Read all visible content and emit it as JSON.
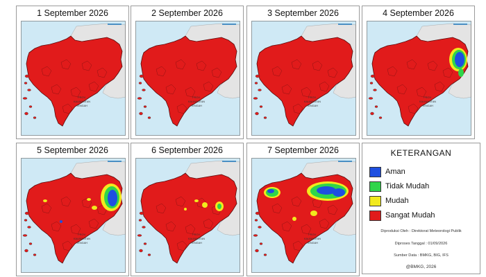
{
  "panels": [
    {
      "title": "1 September 2026",
      "patches": []
    },
    {
      "title": "2 September 2026",
      "patches": []
    },
    {
      "title": "3 September 2026",
      "patches": []
    },
    {
      "title": "4 September 2026",
      "patches": [
        {
          "color": "#f2ea1d",
          "cx": 132,
          "cy": 56,
          "rx": 13,
          "ry": 17
        },
        {
          "color": "#2fd54a",
          "cx": 133,
          "cy": 56,
          "rx": 10,
          "ry": 14
        },
        {
          "color": "#1e4fe0",
          "cx": 134,
          "cy": 56,
          "rx": 7,
          "ry": 11
        },
        {
          "color": "#2fd54a",
          "cx": 136,
          "cy": 75,
          "rx": 4,
          "ry": 6
        }
      ]
    },
    {
      "title": "5 September 2026",
      "patches": [
        {
          "color": "#f2ea1d",
          "cx": 130,
          "cy": 57,
          "rx": 15,
          "ry": 20
        },
        {
          "color": "#2fd54a",
          "cx": 131,
          "cy": 57,
          "rx": 11,
          "ry": 16
        },
        {
          "color": "#1e4fe0",
          "cx": 132,
          "cy": 58,
          "rx": 7,
          "ry": 12
        },
        {
          "color": "#f2ea1d",
          "cx": 106,
          "cy": 72,
          "rx": 4,
          "ry": 3
        },
        {
          "color": "#f2ea1d",
          "cx": 98,
          "cy": 60,
          "rx": 3,
          "ry": 2
        },
        {
          "color": "#f2ea1d",
          "cx": 35,
          "cy": 62,
          "rx": 3,
          "ry": 2
        },
        {
          "color": "#1e4fe0",
          "cx": 58,
          "cy": 92,
          "rx": 2,
          "ry": 2
        }
      ]
    },
    {
      "title": "6 September 2026",
      "patches": [
        {
          "color": "#f2ea1d",
          "cx": 121,
          "cy": 70,
          "rx": 6,
          "ry": 7
        },
        {
          "color": "#2fd54a",
          "cx": 121,
          "cy": 70,
          "rx": 3,
          "ry": 4
        },
        {
          "color": "#f2ea1d",
          "cx": 100,
          "cy": 68,
          "rx": 4,
          "ry": 4
        },
        {
          "color": "#f2ea1d",
          "cx": 88,
          "cy": 62,
          "rx": 3,
          "ry": 2
        },
        {
          "color": "#f2ea1d",
          "cx": 72,
          "cy": 74,
          "rx": 2,
          "ry": 2
        }
      ]
    },
    {
      "title": "7 September 2026",
      "patches": [
        {
          "color": "#f2ea1d",
          "cx": 110,
          "cy": 48,
          "rx": 30,
          "ry": 14
        },
        {
          "color": "#2fd54a",
          "cx": 111,
          "cy": 48,
          "rx": 26,
          "ry": 11
        },
        {
          "color": "#1e4fe0",
          "cx": 108,
          "cy": 47,
          "rx": 14,
          "ry": 6
        },
        {
          "color": "#1e4fe0",
          "cx": 126,
          "cy": 50,
          "rx": 9,
          "ry": 6
        },
        {
          "color": "#f2ea1d",
          "cx": 30,
          "cy": 50,
          "rx": 12,
          "ry": 8
        },
        {
          "color": "#2fd54a",
          "cx": 30,
          "cy": 50,
          "rx": 9,
          "ry": 6
        },
        {
          "color": "#1e4fe0",
          "cx": 28,
          "cy": 48,
          "rx": 5,
          "ry": 3
        },
        {
          "color": "#f2ea1d",
          "cx": 90,
          "cy": 80,
          "rx": 5,
          "ry": 4
        },
        {
          "color": "#f2ea1d",
          "cx": 62,
          "cy": 88,
          "rx": 3,
          "ry": 3
        }
      ]
    }
  ],
  "map_labels": {
    "province": [
      "PROV.",
      "KALIMANTAN",
      "TENGAH"
    ]
  },
  "legend": {
    "title": "KETERANGAN",
    "items": [
      {
        "label": "Aman",
        "color": "#1e4fe0"
      },
      {
        "label": "Tidak Mudah",
        "color": "#2fd54a"
      },
      {
        "label": "Mudah",
        "color": "#f2ea1d"
      },
      {
        "label": "Sangat Mudah",
        "color": "#e11b1b"
      }
    ]
  },
  "notes": {
    "producer": "Diproduksi Oleh : Direktorat Meteorologi Publik",
    "processed": "Diproses Tanggal : 01/09/2026",
    "source": "Sumber Data : BMKG, BIG, IFS",
    "copyright": "@BMKG, 2026"
  },
  "colors": {
    "land": "#e11b1b",
    "sea": "#cfe9f5",
    "neighbor": "#e4e4e4"
  }
}
